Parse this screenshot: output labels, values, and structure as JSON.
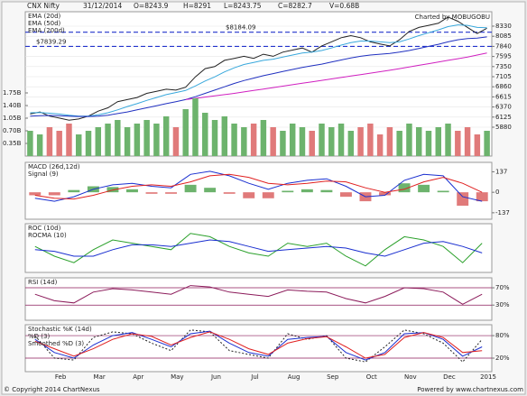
{
  "header": {
    "title": "CNX Nifty",
    "date": "31/12/2014",
    "open": "O=8243.9",
    "high": "H=8291",
    "low": "L=8243.75",
    "close": "C=8282.7",
    "volume": "V=0.68B"
  },
  "credit": "Charted by MOBUGOBU",
  "footer": {
    "copyright": "© Copyright 2014 ChartNexus",
    "powered": "Powered by www.chartnexus.com"
  },
  "x_labels": [
    "Feb",
    "Mar",
    "Apr",
    "May",
    "Jun",
    "Jul",
    "Aug",
    "Sep",
    "Oct",
    "Nov",
    "Dec",
    "2015"
  ],
  "chart_data": [
    {
      "type": "line",
      "grid": true,
      "ylim": [
        5180,
        8680
      ],
      "yticks": [
        8330,
        8085,
        7840,
        7595,
        7350,
        7105,
        6860,
        6615,
        6370,
        6125,
        5880
      ],
      "y2lim": [
        0,
        4
      ],
      "y2ticks": [
        {
          "value": 1.75,
          "label": "1.75B"
        },
        {
          "value": 1.4,
          "label": "1.40B"
        },
        {
          "value": 1.05,
          "label": "1.05B"
        },
        {
          "value": 0.7,
          "label": "0.70B"
        },
        {
          "value": 0.35,
          "label": "0.35B"
        }
      ],
      "reference_lines": [
        {
          "value": 8184.09,
          "label": "$8184.09",
          "color": "#2233cc"
        },
        {
          "value": 7839.29,
          "label": "$7839.29",
          "color": "#2233cc"
        }
      ],
      "series": [
        {
          "color": "#222222",
          "values": [
            6200,
            6250,
            6150,
            6100,
            6050,
            6080,
            6150,
            6270,
            6350,
            6500,
            6550,
            6600,
            6700,
            6750,
            6800,
            6780,
            6850,
            7100,
            7300,
            7350,
            7500,
            7550,
            7600,
            7550,
            7650,
            7600,
            7700,
            7750,
            7800,
            7700,
            7850,
            7950,
            8050,
            8100,
            8050,
            7950,
            7900,
            7850,
            8000,
            8200,
            8300,
            8350,
            8400,
            8550,
            8450,
            8300,
            8150,
            8280
          ]
        },
        {
          "name": "EMA (20d)",
          "color": "#38a8dc",
          "values": [
            6230,
            6235,
            6220,
            6200,
            6170,
            6150,
            6150,
            6180,
            6230,
            6300,
            6380,
            6450,
            6530,
            6600,
            6670,
            6720,
            6770,
            6880,
            7000,
            7100,
            7220,
            7320,
            7400,
            7450,
            7500,
            7530,
            7580,
            7630,
            7680,
            7700,
            7740,
            7800,
            7870,
            7930,
            7970,
            7970,
            7950,
            7930,
            7950,
            8020,
            8100,
            8170,
            8240,
            8320,
            8360,
            8350,
            8300,
            8290
          ]
        },
        {
          "name": "EMA (50d)",
          "color": "#2030c0",
          "values": [
            6150,
            6160,
            6165,
            6160,
            6150,
            6140,
            6140,
            6150,
            6170,
            6210,
            6250,
            6300,
            6350,
            6400,
            6450,
            6500,
            6550,
            6620,
            6700,
            6780,
            6860,
            6940,
            7010,
            7070,
            7130,
            7180,
            7230,
            7280,
            7330,
            7370,
            7410,
            7460,
            7510,
            7560,
            7600,
            7630,
            7650,
            7670,
            7700,
            7740,
            7790,
            7840,
            7890,
            7950,
            8000,
            8030,
            8040,
            8070
          ]
        },
        {
          "name": "EMA (200d)",
          "color": "#d020c0",
          "values": [
            null,
            null,
            null,
            null,
            null,
            null,
            null,
            null,
            null,
            null,
            null,
            null,
            null,
            null,
            null,
            null,
            6550,
            6580,
            6610,
            6640,
            6670,
            6700,
            6735,
            6770,
            6805,
            6840,
            6875,
            6910,
            6945,
            6980,
            7015,
            7050,
            7085,
            7120,
            7155,
            7190,
            7225,
            7260,
            7300,
            7340,
            7380,
            7420,
            7460,
            7500,
            7540,
            7580,
            7630,
            7680
          ]
        },
        {
          "axis": "y2",
          "style": "bar",
          "color": "#6db36d",
          "down_color": "#e07a7a",
          "values": [
            0.7,
            0.6,
            0.8,
            0.7,
            0.9,
            0.6,
            0.7,
            0.8,
            0.9,
            1.0,
            0.8,
            0.9,
            1.0,
            0.9,
            1.1,
            0.8,
            1.3,
            1.6,
            1.2,
            1.0,
            1.1,
            0.9,
            0.8,
            0.9,
            1.0,
            0.8,
            0.7,
            0.9,
            0.8,
            0.7,
            0.9,
            0.8,
            0.9,
            0.7,
            0.8,
            0.9,
            0.6,
            0.8,
            0.7,
            0.9,
            0.8,
            0.7,
            0.8,
            0.9,
            0.7,
            0.8,
            0.6,
            0.7
          ]
        }
      ]
    },
    {
      "type": "line",
      "ylim": [
        -180,
        200
      ],
      "yticks": [
        137,
        0,
        -137
      ],
      "series": [
        {
          "style": "bar",
          "color": "#6db36d",
          "down_color": "#e07a7a",
          "values": [
            -20,
            -20,
            15,
            40,
            35,
            20,
            -10,
            -10,
            50,
            30,
            -10,
            -40,
            -40,
            10,
            20,
            15,
            -30,
            -60,
            -20,
            60,
            50,
            10,
            -90,
            -60
          ]
        },
        {
          "name": "MACD (26d,12d)",
          "color": "#1a2fd0",
          "values": [
            -40,
            -60,
            -30,
            20,
            50,
            60,
            40,
            30,
            120,
            140,
            110,
            60,
            20,
            60,
            80,
            90,
            40,
            -30,
            -20,
            80,
            120,
            110,
            -30,
            -60
          ]
        },
        {
          "name": "Signal (9)",
          "color": "#e02020",
          "values": [
            -20,
            -40,
            -45,
            -20,
            15,
            40,
            50,
            40,
            70,
            110,
            120,
            100,
            60,
            50,
            60,
            75,
            70,
            30,
            0,
            20,
            70,
            100,
            60,
            0
          ]
        }
      ]
    },
    {
      "type": "line",
      "ylim": [
        -6,
        9
      ],
      "yticks": [],
      "series": [
        {
          "name": "ROC (10d)",
          "color": "#2aa02a",
          "values": [
            2,
            -1,
            -3,
            1,
            4,
            3,
            2,
            1,
            6,
            5,
            2,
            0,
            -1,
            3,
            2,
            3,
            -1,
            -4,
            1,
            5,
            4,
            2,
            -3,
            3
          ]
        },
        {
          "name": "ROCMA (10)",
          "color": "#1a2fd0",
          "values": [
            1,
            0.5,
            -1,
            -1,
            1,
            2.5,
            2.5,
            2,
            3,
            4,
            3.5,
            2,
            0.5,
            1,
            1.5,
            2,
            1.5,
            0,
            -1,
            1,
            3,
            3.5,
            2,
            0
          ]
        }
      ]
    },
    {
      "type": "line",
      "grid": true,
      "ylim": [
        -5,
        93
      ],
      "yticks": [
        {
          "value": 70,
          "label": "70%"
        },
        {
          "value": 30,
          "label": "30%"
        }
      ],
      "series": [
        {
          "name": "RSI (14d)",
          "color": "#8b1a5a",
          "values": [
            55,
            40,
            35,
            60,
            68,
            65,
            60,
            55,
            75,
            72,
            60,
            55,
            50,
            65,
            62,
            60,
            45,
            35,
            50,
            70,
            68,
            60,
            32,
            55
          ]
        }
      ]
    },
    {
      "type": "line",
      "grid": true,
      "ylim": [
        -16,
        109
      ],
      "yticks": [
        {
          "value": 80,
          "label": "80%"
        },
        {
          "value": 20,
          "label": "20%"
        }
      ],
      "series": [
        {
          "name": "Stochastic %K (14d)",
          "color": "#222222",
          "style": "dashed",
          "values": [
            80,
            20,
            15,
            75,
            90,
            85,
            60,
            40,
            95,
            90,
            40,
            30,
            20,
            85,
            70,
            80,
            20,
            10,
            50,
            95,
            85,
            60,
            10,
            70
          ]
        },
        {
          "name": "%D (3)",
          "color": "#1a2fd0",
          "values": [
            70,
            35,
            20,
            55,
            80,
            88,
            70,
            50,
            85,
            92,
            60,
            35,
            25,
            70,
            75,
            78,
            35,
            15,
            35,
            85,
            88,
            70,
            25,
            50
          ]
        },
        {
          "name": "Smoothed %D (3)",
          "color": "#e02020",
          "values": [
            65,
            45,
            25,
            45,
            70,
            85,
            78,
            55,
            75,
            90,
            70,
            45,
            30,
            60,
            72,
            77,
            50,
            20,
            30,
            75,
            88,
            75,
            35,
            40
          ]
        }
      ]
    }
  ]
}
